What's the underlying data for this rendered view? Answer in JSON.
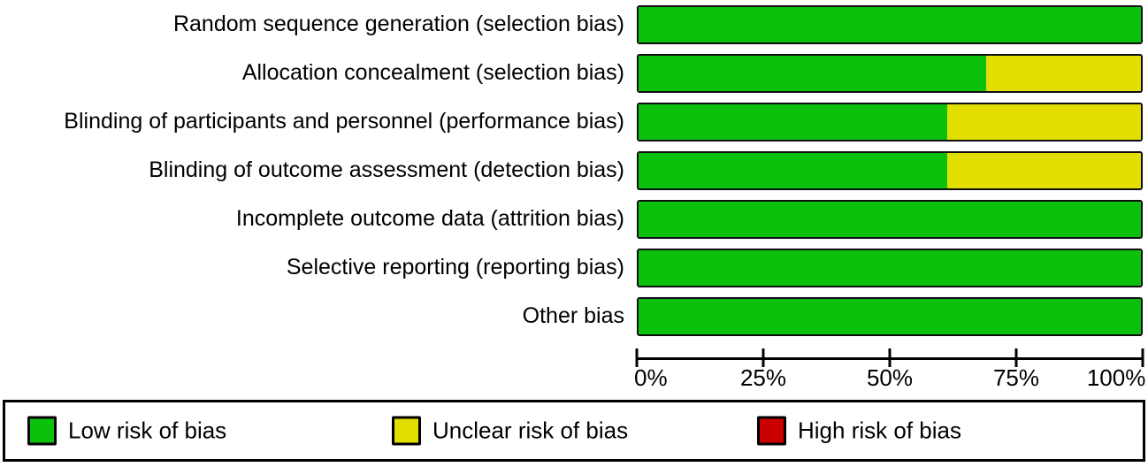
{
  "chart_data": {
    "type": "bar",
    "orientation": "horizontal",
    "title": "",
    "xlabel": "",
    "ylabel": "",
    "categories": [
      "Random sequence generation (selection bias)",
      "Allocation concealment (selection bias)",
      "Blinding of participants and personnel (performance bias)",
      "Blinding of outcome assessment (detection bias)",
      "Incomplete outcome data (attrition bias)",
      "Selective reporting (reporting bias)",
      "Other bias"
    ],
    "series": [
      {
        "name": "Low risk of bias",
        "color": "#0cc10c",
        "values": [
          100,
          69.2,
          61.5,
          61.5,
          100,
          100,
          100
        ]
      },
      {
        "name": "Unclear risk of bias",
        "color": "#e2df00",
        "values": [
          0,
          30.8,
          38.5,
          38.5,
          0,
          0,
          0
        ]
      },
      {
        "name": "High risk of bias",
        "color": "#cc0000",
        "values": [
          0,
          0,
          0,
          0,
          0,
          0,
          0
        ]
      }
    ],
    "x_axis": {
      "range": [
        0,
        100
      ],
      "tick_values": [
        0,
        25,
        50,
        75,
        100
      ],
      "ticks": [
        "0%",
        "25%",
        "50%",
        "75%",
        "100%"
      ]
    },
    "legend": [
      "Low risk of bias",
      "Unclear risk of bias",
      "High risk of bias"
    ],
    "legend_position": "bottom",
    "grid": false
  }
}
